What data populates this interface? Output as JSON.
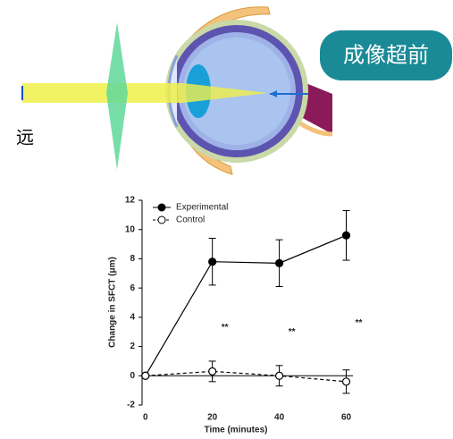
{
  "diagram": {
    "far_label": "远",
    "badge": "成像超前"
  },
  "chart_data": {
    "type": "line",
    "xlabel": "Time (minutes)",
    "ylabel": "Change in SFCT (μm)",
    "x": [
      0,
      20,
      40,
      60
    ],
    "series": [
      {
        "name": "Experimental",
        "color": "#000000",
        "marker": "filled",
        "dashed": false,
        "values": [
          0,
          7.8,
          7.7,
          9.6
        ],
        "errors": [
          null,
          1.6,
          1.6,
          1.7
        ]
      },
      {
        "name": "Control",
        "color": "#000000",
        "marker": "open",
        "dashed": true,
        "values": [
          0,
          0.3,
          0,
          -0.4
        ],
        "errors": [
          null,
          0.7,
          0.7,
          0.8
        ]
      }
    ],
    "annotations": [
      "**",
      "**",
      "**"
    ],
    "xlim": [
      -1,
      62
    ],
    "xticks": [
      0,
      20,
      40,
      60
    ],
    "ylim": [
      -2,
      12
    ],
    "yticks": [
      -2,
      0,
      2,
      4,
      6,
      8,
      10,
      12
    ],
    "legend": "upper-left"
  }
}
